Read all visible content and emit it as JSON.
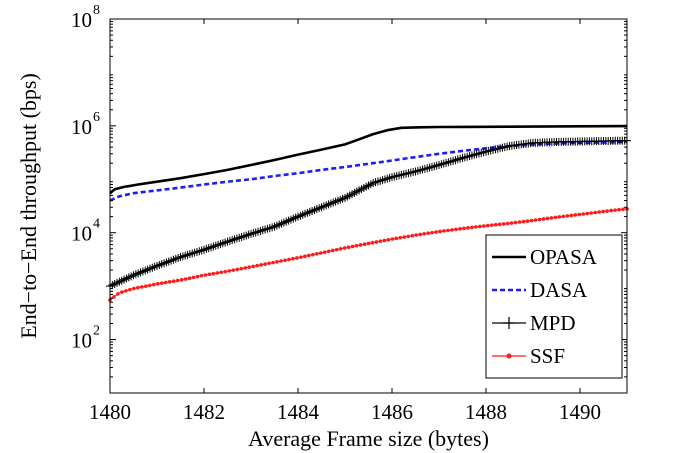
{
  "chart_data": {
    "type": "line",
    "title": "",
    "xlabel": "Average Frame size (bytes)",
    "ylabel": "End−to−End throughput (bps)",
    "yscale": "log",
    "xlim": [
      1480,
      1491
    ],
    "ylim": [
      10,
      100000000
    ],
    "x_ticks": [
      1480,
      1482,
      1484,
      1486,
      1488,
      1490
    ],
    "x_tick_labels": [
      "1480",
      "1482",
      "1484",
      "1486",
      "1488",
      "1490"
    ],
    "y_ticks": [
      {
        "value": 100,
        "base": "10",
        "exp": "2"
      },
      {
        "value": 10000,
        "base": "10",
        "exp": "4"
      },
      {
        "value": 1000000,
        "base": "10",
        "exp": "6"
      },
      {
        "value": 100000000,
        "base": "10",
        "exp": "8"
      }
    ],
    "grid": false,
    "legend_position": "bottom-right",
    "series": [
      {
        "name": "OPASA",
        "color": "#000000",
        "style": "solid",
        "marker": "none",
        "x": [
          1480,
          1480.1,
          1480.3,
          1480.6,
          1481.0,
          1481.5,
          1482.0,
          1482.5,
          1483.0,
          1483.5,
          1484.0,
          1484.5,
          1485.0,
          1485.3,
          1485.6,
          1485.9,
          1486.2,
          1486.6,
          1487.0,
          1487.5,
          1488.0,
          1488.5,
          1489.0,
          1489.5,
          1490.0,
          1490.5,
          1491.0
        ],
        "values": [
          55000,
          65000,
          72000,
          80000,
          90000,
          105000,
          125000,
          150000,
          185000,
          230000,
          290000,
          360000,
          450000,
          560000,
          700000,
          830000,
          920000,
          940000,
          950000,
          955000,
          960000,
          965000,
          970000,
          975000,
          980000,
          985000,
          990000
        ]
      },
      {
        "name": "DASA",
        "color": "#1c1cff",
        "style": "dashed",
        "marker": "none",
        "x": [
          1480,
          1480.2,
          1480.5,
          1481.0,
          1481.5,
          1482.0,
          1482.5,
          1483.0,
          1483.5,
          1484.0,
          1484.5,
          1485.0,
          1485.5,
          1486.0,
          1486.5,
          1487.0,
          1487.5,
          1488.0,
          1488.5,
          1489.0,
          1489.5,
          1490.0,
          1490.5,
          1491.0
        ],
        "values": [
          40000,
          48000,
          55000,
          62000,
          70000,
          80000,
          90000,
          100000,
          115000,
          130000,
          150000,
          170000,
          195000,
          225000,
          260000,
          300000,
          340000,
          380000,
          420000,
          450000,
          470000,
          480000,
          490000,
          500000
        ]
      },
      {
        "name": "MPD",
        "color": "#000000",
        "style": "solid",
        "marker": "plus",
        "x": [
          1480,
          1480.5,
          1481.0,
          1481.5,
          1482.0,
          1482.5,
          1483.0,
          1483.5,
          1484.0,
          1484.5,
          1485.0,
          1485.3,
          1485.6,
          1486.0,
          1486.5,
          1487.0,
          1487.5,
          1488.0,
          1488.5,
          1489.0,
          1489.5,
          1490.0,
          1490.5,
          1491.0
        ],
        "values": [
          1000,
          1600,
          2400,
          3500,
          4800,
          6800,
          9500,
          13000,
          20000,
          30000,
          45000,
          62000,
          85000,
          110000,
          140000,
          185000,
          250000,
          330000,
          420000,
          480000,
          500000,
          510000,
          520000,
          530000
        ]
      },
      {
        "name": "SSF",
        "color": "#ff1c1c",
        "style": "solid",
        "marker": "dot",
        "x": [
          1480,
          1480.2,
          1480.5,
          1481.0,
          1481.5,
          1482.0,
          1482.5,
          1483.0,
          1483.5,
          1484.0,
          1484.5,
          1485.0,
          1485.5,
          1486.0,
          1486.5,
          1487.0,
          1487.5,
          1488.0,
          1488.5,
          1489.0,
          1489.5,
          1490.0,
          1490.5,
          1491.0
        ],
        "values": [
          550,
          750,
          900,
          1100,
          1300,
          1600,
          1900,
          2300,
          2800,
          3400,
          4200,
          5200,
          6300,
          7600,
          9000,
          10500,
          12000,
          13500,
          15000,
          17000,
          19500,
          22000,
          25000,
          28000
        ]
      }
    ]
  }
}
